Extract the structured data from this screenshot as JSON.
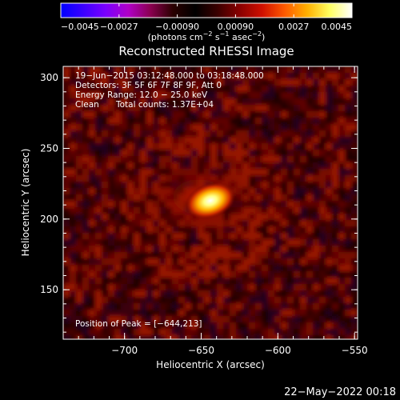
{
  "colorbar": {
    "tick_labels": [
      "−0.0045",
      "−0.0027",
      "−0.00090",
      "0.00090",
      "0.0027",
      "0.0045"
    ],
    "tick_values": [
      -0.0045,
      -0.0027,
      -0.0009,
      0.0009,
      0.0027,
      0.0045
    ],
    "range": [
      -0.0045,
      0.0045
    ],
    "units_prefix": "(photons cm",
    "units_exp1": "−2",
    "units_mid": " s",
    "units_exp2": "−1",
    "units_mid2": " asec",
    "units_exp3": "−2",
    "units_suffix": ")",
    "colors": [
      "#0000ff",
      "#3a00ff",
      "#7a00ff",
      "#b000c8",
      "#8a0050",
      "#2a0000",
      "#000000",
      "#3a0000",
      "#8a0000",
      "#d01000",
      "#ff5a00",
      "#ffb000",
      "#ffff60",
      "#ffffff"
    ]
  },
  "chart_data": {
    "type": "heatmap",
    "title": "Reconstructed RHESSI Image",
    "xlabel": "Heliocentric X (arcsec)",
    "ylabel": "Heliocentric Y (arcsec)",
    "xlim": [
      -740,
      -548
    ],
    "ylim": [
      115,
      308
    ],
    "xticks": [
      -700,
      -650,
      -600,
      -550
    ],
    "xtick_labels": [
      "−700",
      "−650",
      "−600",
      "−550"
    ],
    "yticks": [
      150,
      200,
      250,
      300
    ],
    "ytick_labels": [
      "150",
      "200",
      "250",
      "300"
    ],
    "peak": {
      "x": -644,
      "y": 213
    },
    "annotations": {
      "line1": "19−Jun−2015 03:12:48.000 to 03:18:48.000",
      "line2": "Detectors: 3F 5F 6F 7F 8F 9F, Att 0",
      "line3": "Energy Range: 12.0 − 25.0 keV",
      "line4_label": "Clean",
      "line4_counts": "Total counts: 1.37E+04",
      "peak_text": "Position of Peak = [−644,213]"
    }
  },
  "footer": {
    "date": "22−May−2022 00:18"
  }
}
